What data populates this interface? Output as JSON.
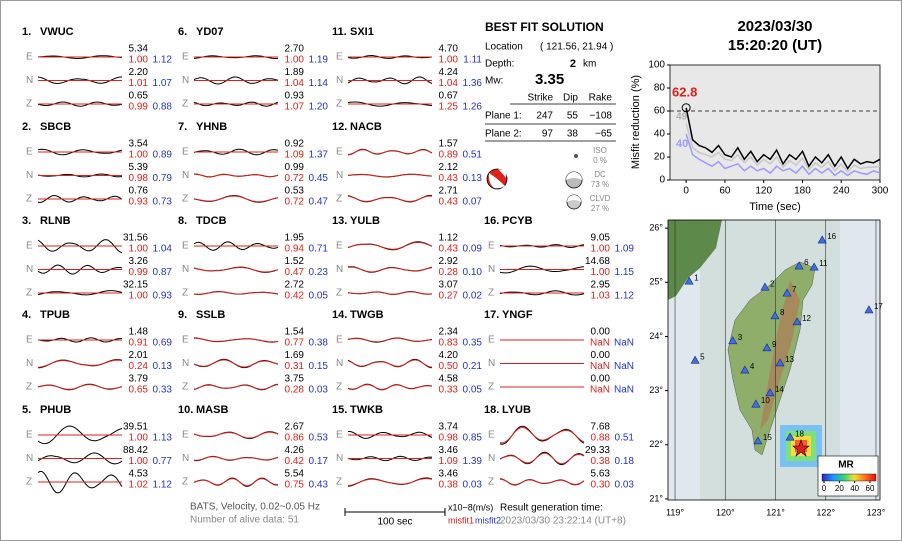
{
  "stations": [
    {
      "label": "1.",
      "name": "VWUC",
      "components": [
        {
          "comp": "E",
          "amp": "5.34",
          "misfit1": "1.00",
          "misfit2": "1.12"
        },
        {
          "comp": "N",
          "amp": "2.20",
          "misfit1": "1.01",
          "misfit2": "1.07"
        },
        {
          "comp": "Z",
          "amp": "0.65",
          "misfit1": "0.99",
          "misfit2": "0.88"
        }
      ]
    },
    {
      "label": "2.",
      "name": "SBCB",
      "components": [
        {
          "comp": "E",
          "amp": "3.54",
          "misfit1": "1.00",
          "misfit2": "0.89"
        },
        {
          "comp": "N",
          "amp": "5.39",
          "misfit1": "0.98",
          "misfit2": "0.79"
        },
        {
          "comp": "Z",
          "amp": "0.76",
          "misfit1": "0.93",
          "misfit2": "0.73"
        }
      ]
    },
    {
      "label": "3.",
      "name": "RLNB",
      "components": [
        {
          "comp": "E",
          "amp": "31.56",
          "misfit1": "1.00",
          "misfit2": "1.04"
        },
        {
          "comp": "N",
          "amp": "3.26",
          "misfit1": "0.99",
          "misfit2": "0.87"
        },
        {
          "comp": "Z",
          "amp": "32.15",
          "misfit1": "1.00",
          "misfit2": "0.93"
        }
      ]
    },
    {
      "label": "4.",
      "name": "TPUB",
      "components": [
        {
          "comp": "E",
          "amp": "1.48",
          "misfit1": "0.91",
          "misfit2": "0.69"
        },
        {
          "comp": "N",
          "amp": "2.01",
          "misfit1": "0.24",
          "misfit2": "0.13"
        },
        {
          "comp": "Z",
          "amp": "3.79",
          "misfit1": "0.65",
          "misfit2": "0.33"
        }
      ]
    },
    {
      "label": "5.",
      "name": "PHUB",
      "components": [
        {
          "comp": "E",
          "amp": "39.51",
          "misfit1": "1.00",
          "misfit2": "1.13"
        },
        {
          "comp": "N",
          "amp": "88.42",
          "misfit1": "1.00",
          "misfit2": "0.77"
        },
        {
          "comp": "Z",
          "amp": "4.53",
          "misfit1": "1.02",
          "misfit2": "1.12"
        }
      ]
    },
    {
      "label": "6.",
      "name": "YD07",
      "components": [
        {
          "comp": "E",
          "amp": "2.70",
          "misfit1": "1.00",
          "misfit2": "1.19"
        },
        {
          "comp": "N",
          "amp": "1.89",
          "misfit1": "1.04",
          "misfit2": "1.14"
        },
        {
          "comp": "Z",
          "amp": "0.93",
          "misfit1": "1.07",
          "misfit2": "1.20"
        }
      ]
    },
    {
      "label": "7.",
      "name": "YHNB",
      "components": [
        {
          "comp": "E",
          "amp": "0.92",
          "misfit1": "1.09",
          "misfit2": "1.37"
        },
        {
          "comp": "N",
          "amp": "0.99",
          "misfit1": "0.72",
          "misfit2": "0.45"
        },
        {
          "comp": "Z",
          "amp": "0.53",
          "misfit1": "0.72",
          "misfit2": "0.47"
        }
      ]
    },
    {
      "label": "8.",
      "name": "TDCB",
      "components": [
        {
          "comp": "E",
          "amp": "1.95",
          "misfit1": "0.94",
          "misfit2": "0.71"
        },
        {
          "comp": "N",
          "amp": "1.52",
          "misfit1": "0.47",
          "misfit2": "0.23"
        },
        {
          "comp": "Z",
          "amp": "2.72",
          "misfit1": "0.42",
          "misfit2": "0.05"
        }
      ]
    },
    {
      "label": "9.",
      "name": "SSLB",
      "components": [
        {
          "comp": "E",
          "amp": "1.54",
          "misfit1": "0.77",
          "misfit2": "0.38"
        },
        {
          "comp": "N",
          "amp": "1.69",
          "misfit1": "0.31",
          "misfit2": "0.15"
        },
        {
          "comp": "Z",
          "amp": "3.75",
          "misfit1": "0.28",
          "misfit2": "0.03"
        }
      ]
    },
    {
      "label": "10.",
      "name": "MASB",
      "components": [
        {
          "comp": "E",
          "amp": "2.67",
          "misfit1": "0.86",
          "misfit2": "0.53"
        },
        {
          "comp": "N",
          "amp": "4.26",
          "misfit1": "0.42",
          "misfit2": "0.17"
        },
        {
          "comp": "Z",
          "amp": "5.54",
          "misfit1": "0.75",
          "misfit2": "0.43"
        }
      ]
    },
    {
      "label": "11.",
      "name": "SXI1",
      "components": [
        {
          "comp": "E",
          "amp": "4.70",
          "misfit1": "1.00",
          "misfit2": "1.11"
        },
        {
          "comp": "N",
          "amp": "4.24",
          "misfit1": "1.04",
          "misfit2": "1.36"
        },
        {
          "comp": "Z",
          "amp": "0.67",
          "misfit1": "1.25",
          "misfit2": "1.26"
        }
      ]
    },
    {
      "label": "12.",
      "name": "NACB",
      "components": [
        {
          "comp": "E",
          "amp": "1.57",
          "misfit1": "0.89",
          "misfit2": "0.51"
        },
        {
          "comp": "N",
          "amp": "2.12",
          "misfit1": "0.43",
          "misfit2": "0.13"
        },
        {
          "comp": "Z",
          "amp": "2.71",
          "misfit1": "0.43",
          "misfit2": "0.07"
        }
      ]
    },
    {
      "label": "13.",
      "name": "YULB",
      "components": [
        {
          "comp": "E",
          "amp": "1.12",
          "misfit1": "0.43",
          "misfit2": "0.09"
        },
        {
          "comp": "N",
          "amp": "2.92",
          "misfit1": "0.28",
          "misfit2": "0.10"
        },
        {
          "comp": "Z",
          "amp": "3.07",
          "misfit1": "0.27",
          "misfit2": "0.02"
        }
      ]
    },
    {
      "label": "14.",
      "name": "TWGB",
      "components": [
        {
          "comp": "E",
          "amp": "2.34",
          "misfit1": "0.83",
          "misfit2": "0.35"
        },
        {
          "comp": "N",
          "amp": "4.20",
          "misfit1": "0.50",
          "misfit2": "0.21"
        },
        {
          "comp": "Z",
          "amp": "4.58",
          "misfit1": "0.33",
          "misfit2": "0.05"
        }
      ]
    },
    {
      "label": "15.",
      "name": "TWKB",
      "components": [
        {
          "comp": "E",
          "amp": "3.74",
          "misfit1": "0.98",
          "misfit2": "0.85"
        },
        {
          "comp": "N",
          "amp": "3.46",
          "misfit1": "1.09",
          "misfit2": "1.39"
        },
        {
          "comp": "Z",
          "amp": "3.46",
          "misfit1": "0.38",
          "misfit2": "0.03"
        }
      ]
    },
    {
      "label": "16.",
      "name": "PCYB",
      "components": [
        {
          "comp": "E",
          "amp": "9.05",
          "misfit1": "1.00",
          "misfit2": "1.09"
        },
        {
          "comp": "N",
          "amp": "14.68",
          "misfit1": "1.00",
          "misfit2": "1.15"
        },
        {
          "comp": "Z",
          "amp": "2.95",
          "misfit1": "1.03",
          "misfit2": "1.12"
        }
      ]
    },
    {
      "label": "17.",
      "name": "YNGF",
      "components": [
        {
          "comp": "E",
          "amp": "0.00",
          "misfit1": "NaN",
          "misfit2": "NaN"
        },
        {
          "comp": "N",
          "amp": "0.00",
          "misfit1": "NaN",
          "misfit2": "NaN"
        },
        {
          "comp": "Z",
          "amp": "0.00",
          "misfit1": "NaN",
          "misfit2": "NaN"
        }
      ]
    },
    {
      "label": "18.",
      "name": "LYUB",
      "components": [
        {
          "comp": "E",
          "amp": "7.68",
          "misfit1": "0.88",
          "misfit2": "0.51"
        },
        {
          "comp": "N",
          "amp": "29.33",
          "misfit1": "0.38",
          "misfit2": "0.18"
        },
        {
          "comp": "Z",
          "amp": "5.63",
          "misfit1": "0.30",
          "misfit2": "0.03"
        }
      ]
    }
  ],
  "footer": {
    "filter": "BATS, Velocity, 0.02~0.05 Hz",
    "alive": "Number of alive data: 51",
    "scale": "100 sec",
    "units": "x10−8(m/s)",
    "misfit1": "misfit1",
    "misfit2": "misfit2",
    "result_label": "Result generation time:",
    "result_time": "2023/03/30 23:22:14 (UT+8)"
  },
  "solution": {
    "title": "BEST FIT SOLUTION",
    "location_label": "Location",
    "location": "( 121.56, 21.94 )",
    "depth_label": "Depth:",
    "depth": "2",
    "depth_unit": "km",
    "mw_label": "Mw:",
    "mw": "3.35",
    "headers": [
      "Strike",
      "Dip",
      "Rake"
    ],
    "planes": [
      {
        "name": "Plane 1:",
        "values": [
          "247",
          "55",
          "−108"
        ]
      },
      {
        "name": "Plane 2:",
        "values": [
          "97",
          "38",
          "−65"
        ]
      }
    ],
    "components": [
      {
        "name": "ISO",
        "percent": "0 %"
      },
      {
        "name": "DC",
        "percent": "73 %"
      },
      {
        "name": "CLVD",
        "percent": "27 %"
      }
    ]
  },
  "datetime": {
    "date": "2023/03/30",
    "time": "15:20:20  (UT)"
  },
  "misfit_chart": {
    "type": "line",
    "ylabel": "Misfit reduction (%)",
    "xlabel": "Time (sec)",
    "xlim": [
      -25,
      300
    ],
    "ylim": [
      0,
      100
    ],
    "xticks": [
      0,
      60,
      120,
      180,
      240,
      300
    ],
    "yticks": [
      0,
      20,
      40,
      60,
      80,
      100
    ],
    "reference_line": 60,
    "x": [
      0,
      10,
      20,
      30,
      40,
      50,
      60,
      70,
      80,
      90,
      100,
      110,
      120,
      130,
      140,
      150,
      160,
      170,
      180,
      190,
      200,
      210,
      220,
      230,
      240,
      250,
      260,
      270,
      280,
      290,
      300
    ],
    "series": [
      {
        "color": "#c8c8c8",
        "values": [
          49,
          28,
          24,
          22,
          20,
          24,
          18,
          17,
          22,
          15,
          20,
          13,
          18,
          14,
          20,
          11,
          17,
          13,
          19,
          9,
          15,
          11,
          16,
          8,
          14,
          7,
          13,
          10,
          11,
          11,
          12
        ]
      },
      {
        "color": "#9a9aff",
        "values": [
          40,
          22,
          18,
          15,
          12,
          16,
          10,
          12,
          14,
          8,
          12,
          8,
          10,
          6,
          12,
          8,
          10,
          6,
          12,
          5,
          10,
          6,
          10,
          4,
          8,
          4,
          8,
          6,
          5,
          8,
          6
        ]
      },
      {
        "color": "#000000",
        "values": [
          62.8,
          35,
          30,
          28,
          24,
          30,
          22,
          20,
          28,
          18,
          25,
          16,
          22,
          18,
          26,
          14,
          22,
          18,
          25,
          12,
          20,
          15,
          22,
          12,
          20,
          10,
          18,
          14,
          16,
          15,
          18
        ]
      }
    ],
    "annotations": [
      {
        "text": "62.8",
        "color": "#e0201b"
      },
      {
        "text": "49",
        "color": "#b0b0b0"
      },
      {
        "text": "40",
        "color": "#9a9aff"
      }
    ]
  },
  "map": {
    "lonlim": [
      118.86,
      123.08
    ],
    "latlim": [
      20.98,
      26.15
    ],
    "lonticks": [
      {
        "value": 119,
        "label": "119°"
      },
      {
        "value": 120,
        "label": "120°"
      },
      {
        "value": 121,
        "label": "121°"
      },
      {
        "value": 122,
        "label": "122°"
      },
      {
        "value": 123,
        "label": "123°"
      }
    ],
    "latticks": [
      {
        "value": 21,
        "label": "21°"
      },
      {
        "value": 22,
        "label": "22°"
      },
      {
        "value": 23,
        "label": "23°"
      },
      {
        "value": 24,
        "label": "24°"
      },
      {
        "value": 25,
        "label": "25°"
      },
      {
        "value": 26,
        "label": "26°"
      }
    ],
    "stations": [
      {
        "label": "1",
        "lon": 119.28,
        "lat": 25.02
      },
      {
        "label": "2",
        "lon": 120.79,
        "lat": 24.91
      },
      {
        "label": "3",
        "lon": 120.15,
        "lat": 23.92
      },
      {
        "label": "4",
        "lon": 120.39,
        "lat": 23.38
      },
      {
        "label": "5",
        "lon": 119.4,
        "lat": 23.56
      },
      {
        "label": "6",
        "lon": 121.47,
        "lat": 25.3
      },
      {
        "label": "7",
        "lon": 121.23,
        "lat": 24.8
      },
      {
        "label": "8",
        "lon": 120.99,
        "lat": 24.38
      },
      {
        "label": "9",
        "lon": 120.83,
        "lat": 23.79
      },
      {
        "label": "10",
        "lon": 120.61,
        "lat": 22.75
      },
      {
        "label": "11",
        "lon": 121.77,
        "lat": 25.28
      },
      {
        "label": "12",
        "lon": 121.43,
        "lat": 24.27
      },
      {
        "label": "13",
        "lon": 121.09,
        "lat": 23.51
      },
      {
        "label": "14",
        "lon": 120.89,
        "lat": 22.96
      },
      {
        "label": "15",
        "lon": 120.65,
        "lat": 22.07
      },
      {
        "label": "16",
        "lon": 121.93,
        "lat": 25.78
      },
      {
        "label": "17",
        "lon": 122.86,
        "lat": 24.49
      },
      {
        "label": "18",
        "lon": 121.29,
        "lat": 22.14
      }
    ],
    "colorbar_label": "MR",
    "colorbar_ticks": [
      0,
      20,
      40,
      60
    ]
  }
}
